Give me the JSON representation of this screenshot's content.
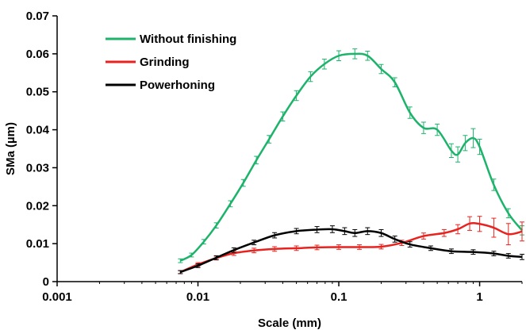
{
  "chart_data": {
    "type": "line",
    "xlabel": "Scale (mm)",
    "ylabel": "SMa (µm)",
    "xscale": "log",
    "xlim": [
      0.001,
      2.0
    ],
    "ylim": [
      0,
      0.07
    ],
    "x_ticks": [
      {
        "value": 0.001,
        "label": "0.001"
      },
      {
        "value": 0.01,
        "label": "0.01"
      },
      {
        "value": 0.1,
        "label": "0.1"
      },
      {
        "value": 1,
        "label": "1"
      }
    ],
    "y_ticks": [
      {
        "value": 0,
        "label": "0"
      },
      {
        "value": 0.01,
        "label": "0.01"
      },
      {
        "value": 0.02,
        "label": "0.02"
      },
      {
        "value": 0.03,
        "label": "0.03"
      },
      {
        "value": 0.04,
        "label": "0.04"
      },
      {
        "value": 0.05,
        "label": "0.05"
      },
      {
        "value": 0.06,
        "label": "0.06"
      },
      {
        "value": 0.07,
        "label": "0.07"
      }
    ],
    "grid": false,
    "legend_position": "top-left",
    "series": [
      {
        "name": "Without finishing",
        "color": "#1db36b",
        "points": [
          [
            0.0075,
            0.0055,
            0.0005
          ],
          [
            0.009,
            0.007,
            0.0005
          ],
          [
            0.011,
            0.0105,
            0.0006
          ],
          [
            0.0135,
            0.0148,
            0.0007
          ],
          [
            0.017,
            0.0205,
            0.0008
          ],
          [
            0.021,
            0.026,
            0.0009
          ],
          [
            0.026,
            0.032,
            0.001
          ],
          [
            0.032,
            0.0375,
            0.001
          ],
          [
            0.04,
            0.0435,
            0.0012
          ],
          [
            0.05,
            0.049,
            0.0013
          ],
          [
            0.063,
            0.054,
            0.0013
          ],
          [
            0.079,
            0.0573,
            0.0013
          ],
          [
            0.1,
            0.0595,
            0.0013
          ],
          [
            0.13,
            0.06,
            0.0013
          ],
          [
            0.16,
            0.0595,
            0.0012
          ],
          [
            0.2,
            0.056,
            0.0012
          ],
          [
            0.25,
            0.0525,
            0.0012
          ],
          [
            0.32,
            0.0445,
            0.0015
          ],
          [
            0.4,
            0.0405,
            0.0015
          ],
          [
            0.5,
            0.04,
            0.0015
          ],
          [
            0.63,
            0.0345,
            0.0018
          ],
          [
            0.7,
            0.0335,
            0.002
          ],
          [
            0.79,
            0.0365,
            0.002
          ],
          [
            0.9,
            0.0378,
            0.0025
          ],
          [
            1.0,
            0.0355,
            0.002
          ],
          [
            1.26,
            0.0255,
            0.0015
          ],
          [
            1.6,
            0.018,
            0.0012
          ],
          [
            2.0,
            0.0135,
            0.0012
          ]
        ]
      },
      {
        "name": "Grinding",
        "color": "#e8231f",
        "points": [
          [
            0.0075,
            0.0025,
            0.0004
          ],
          [
            0.01,
            0.0045,
            0.0005
          ],
          [
            0.0135,
            0.0062,
            0.0005
          ],
          [
            0.018,
            0.0075,
            0.0006
          ],
          [
            0.025,
            0.0082,
            0.0006
          ],
          [
            0.035,
            0.0086,
            0.0006
          ],
          [
            0.05,
            0.0088,
            0.0006
          ],
          [
            0.07,
            0.009,
            0.0006
          ],
          [
            0.1,
            0.0091,
            0.0006
          ],
          [
            0.14,
            0.0091,
            0.0006
          ],
          [
            0.2,
            0.0092,
            0.0006
          ],
          [
            0.28,
            0.0102,
            0.0007
          ],
          [
            0.4,
            0.012,
            0.0008
          ],
          [
            0.56,
            0.0128,
            0.0009
          ],
          [
            0.7,
            0.0138,
            0.0012
          ],
          [
            0.85,
            0.0153,
            0.0018
          ],
          [
            1.0,
            0.0152,
            0.002
          ],
          [
            1.26,
            0.0142,
            0.0025
          ],
          [
            1.6,
            0.0125,
            0.0028
          ],
          [
            2.0,
            0.0132,
            0.0025
          ]
        ]
      },
      {
        "name": "Powerhoning",
        "color": "#000000",
        "points": [
          [
            0.0075,
            0.0025,
            0.0004
          ],
          [
            0.01,
            0.0042,
            0.0005
          ],
          [
            0.0135,
            0.0063,
            0.0005
          ],
          [
            0.018,
            0.0083,
            0.0006
          ],
          [
            0.025,
            0.0103,
            0.0006
          ],
          [
            0.035,
            0.0122,
            0.0007
          ],
          [
            0.05,
            0.0133,
            0.0007
          ],
          [
            0.07,
            0.0137,
            0.0008
          ],
          [
            0.09,
            0.0138,
            0.0009
          ],
          [
            0.11,
            0.0133,
            0.0009
          ],
          [
            0.13,
            0.0128,
            0.0009
          ],
          [
            0.16,
            0.0133,
            0.0009
          ],
          [
            0.2,
            0.0128,
            0.0009
          ],
          [
            0.25,
            0.0112,
            0.0008
          ],
          [
            0.32,
            0.0098,
            0.0007
          ],
          [
            0.45,
            0.0088,
            0.0006
          ],
          [
            0.63,
            0.008,
            0.0006
          ],
          [
            0.9,
            0.0078,
            0.0006
          ],
          [
            1.26,
            0.0074,
            0.0006
          ],
          [
            1.6,
            0.0068,
            0.0006
          ],
          [
            2.0,
            0.0065,
            0.0007
          ]
        ]
      }
    ]
  }
}
